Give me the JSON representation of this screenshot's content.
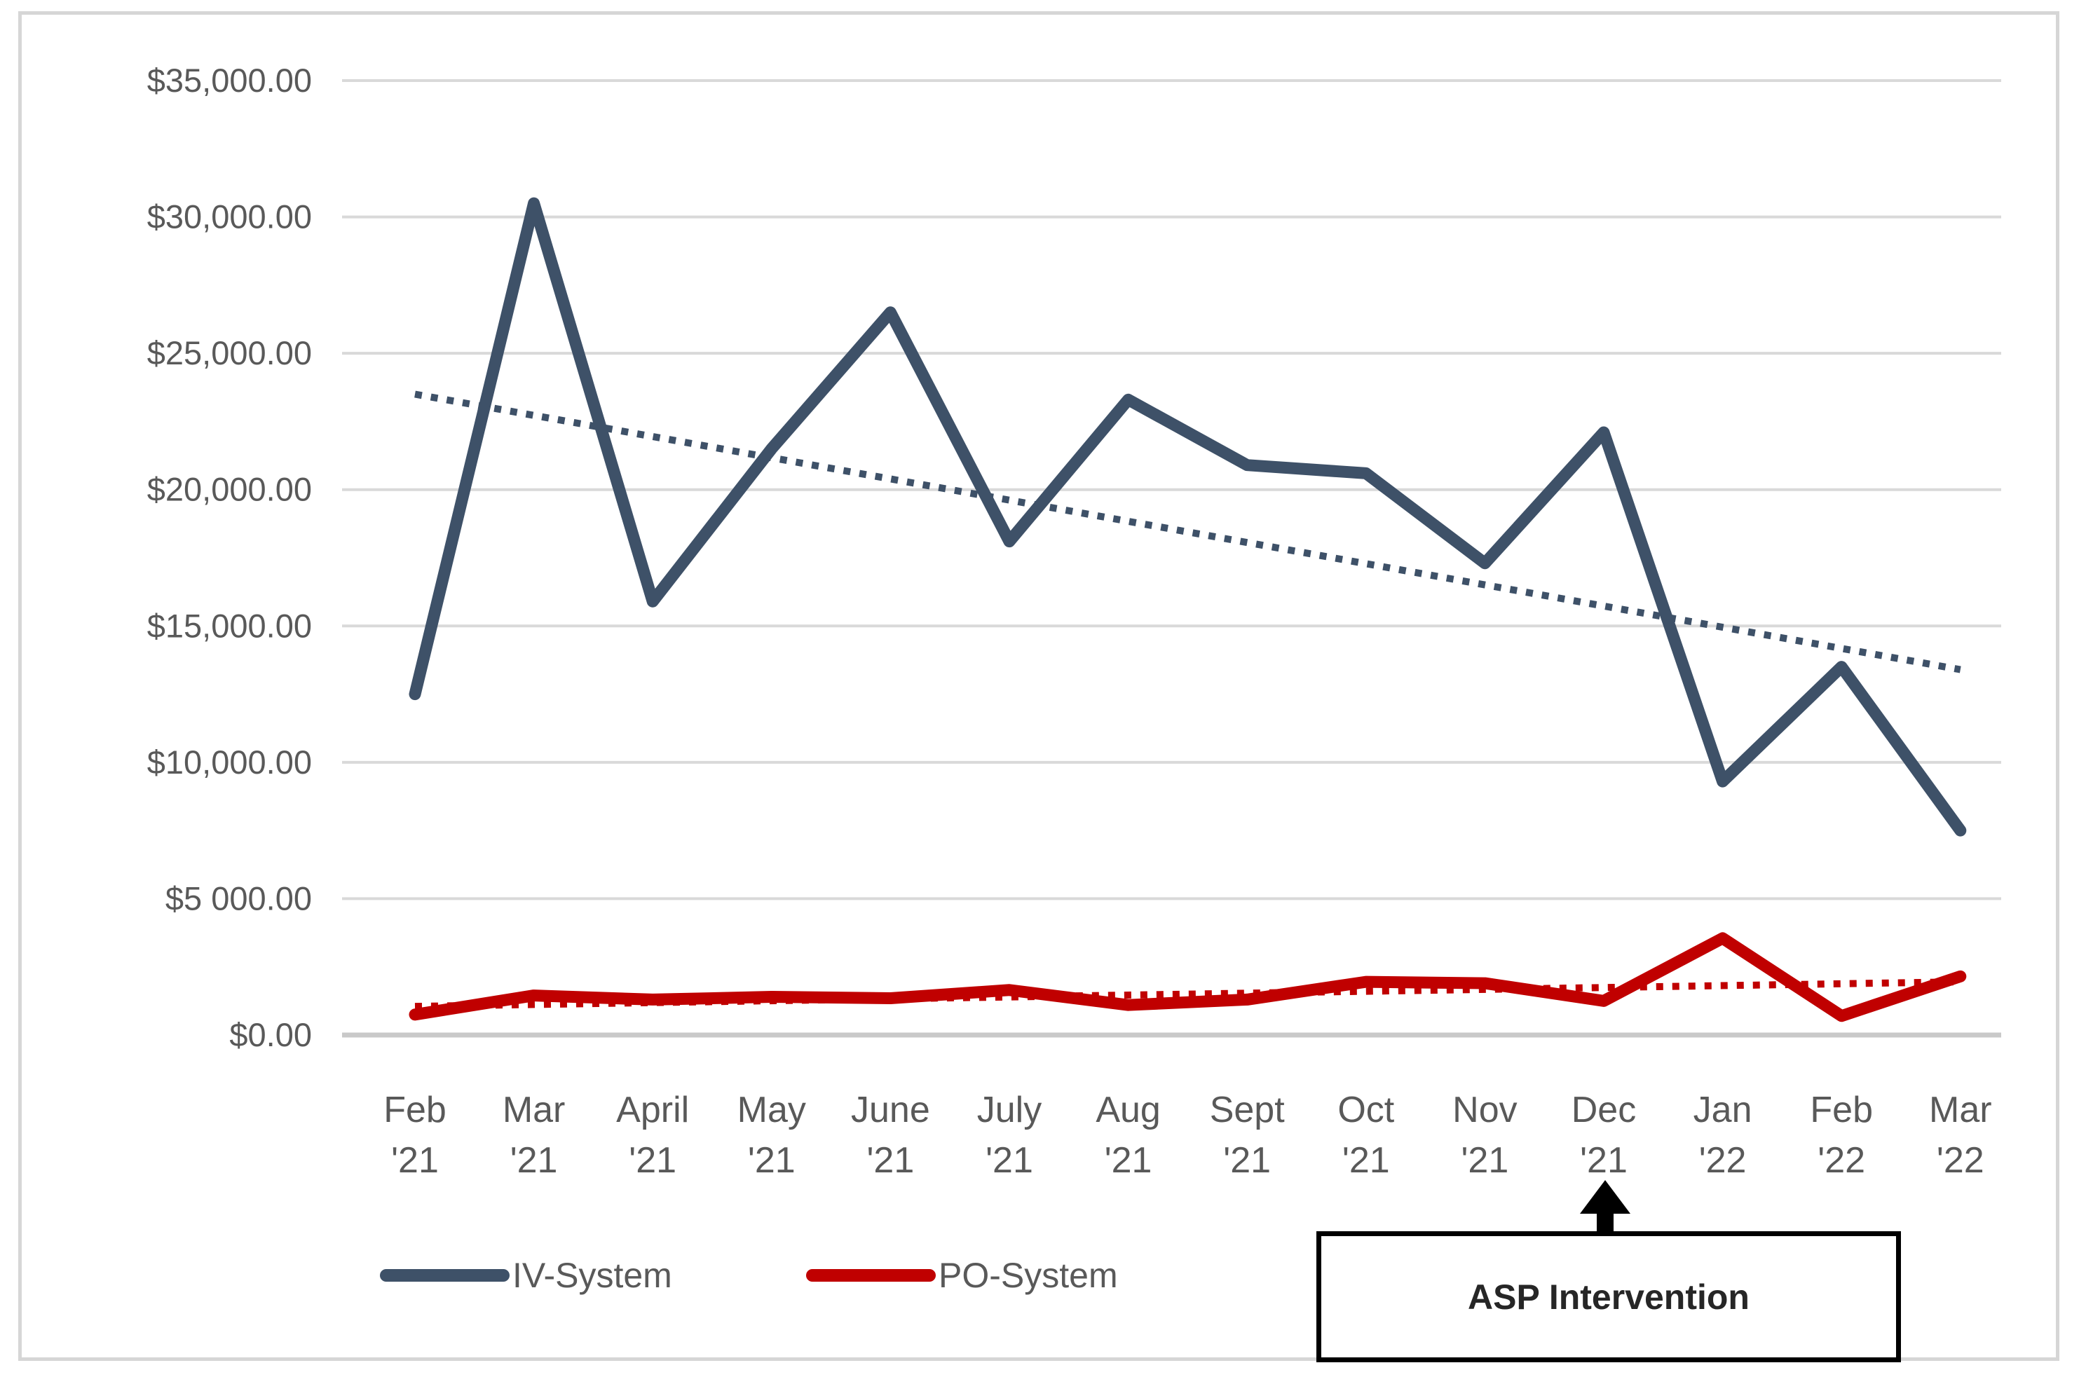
{
  "chart_data": {
    "type": "line",
    "title": "",
    "categories": [
      {
        "month": "Feb",
        "year": "'21"
      },
      {
        "month": "Mar",
        "year": "'21"
      },
      {
        "month": "April",
        "year": "'21"
      },
      {
        "month": "May",
        "year": "'21"
      },
      {
        "month": "June",
        "year": "'21"
      },
      {
        "month": "July",
        "year": "'21"
      },
      {
        "month": "Aug",
        "year": "'21"
      },
      {
        "month": "Sept",
        "year": "'21"
      },
      {
        "month": "Oct",
        "year": "'21"
      },
      {
        "month": "Nov",
        "year": "'21"
      },
      {
        "month": "Dec",
        "year": "'21"
      },
      {
        "month": "Jan",
        "year": "'22"
      },
      {
        "month": "Feb",
        "year": "'22"
      },
      {
        "month": "Mar",
        "year": "'22"
      }
    ],
    "series": [
      {
        "name": "IV-System",
        "color": "#3e5168",
        "values": [
          12500,
          30500,
          15900,
          21500,
          26500,
          18100,
          23300,
          20900,
          20600,
          17300,
          22100,
          9300,
          13500,
          7500
        ]
      },
      {
        "name": "PO-System",
        "color": "#c00000",
        "values": [
          750,
          1450,
          1300,
          1400,
          1350,
          1650,
          1100,
          1300,
          1950,
          1900,
          1250,
          3550,
          700,
          2150
        ]
      }
    ],
    "trendlines": [
      {
        "series": "IV-System",
        "style": "dotted",
        "color": "#3e5168",
        "start": 23500,
        "end": 13400
      },
      {
        "series": "PO-System",
        "style": "dotted",
        "color": "#c00000",
        "start": 1050,
        "end": 1950
      }
    ],
    "y_axis": {
      "min": 0,
      "max": 35000,
      "tick_interval": 5000,
      "tick_labels": [
        "$35,000.00",
        "$30,000.00",
        "$25,000.00",
        "$20,000.00",
        "$15,000.00",
        "$10,000.00",
        "$5 000.00",
        "$0.00"
      ]
    },
    "grid": true,
    "legend": {
      "position": "bottom",
      "items": [
        "IV-System",
        "PO-System"
      ]
    }
  },
  "annotation": {
    "label": "ASP Intervention",
    "arrow_points_to": "Dec '21"
  },
  "colors": {
    "gridline": "#d9d9d9",
    "axis_line": "#c9c9c9",
    "tick_text": "#595959",
    "frame_border": "#d6d6d6",
    "annotation_border": "#000000",
    "annotation_text": "#262626"
  }
}
